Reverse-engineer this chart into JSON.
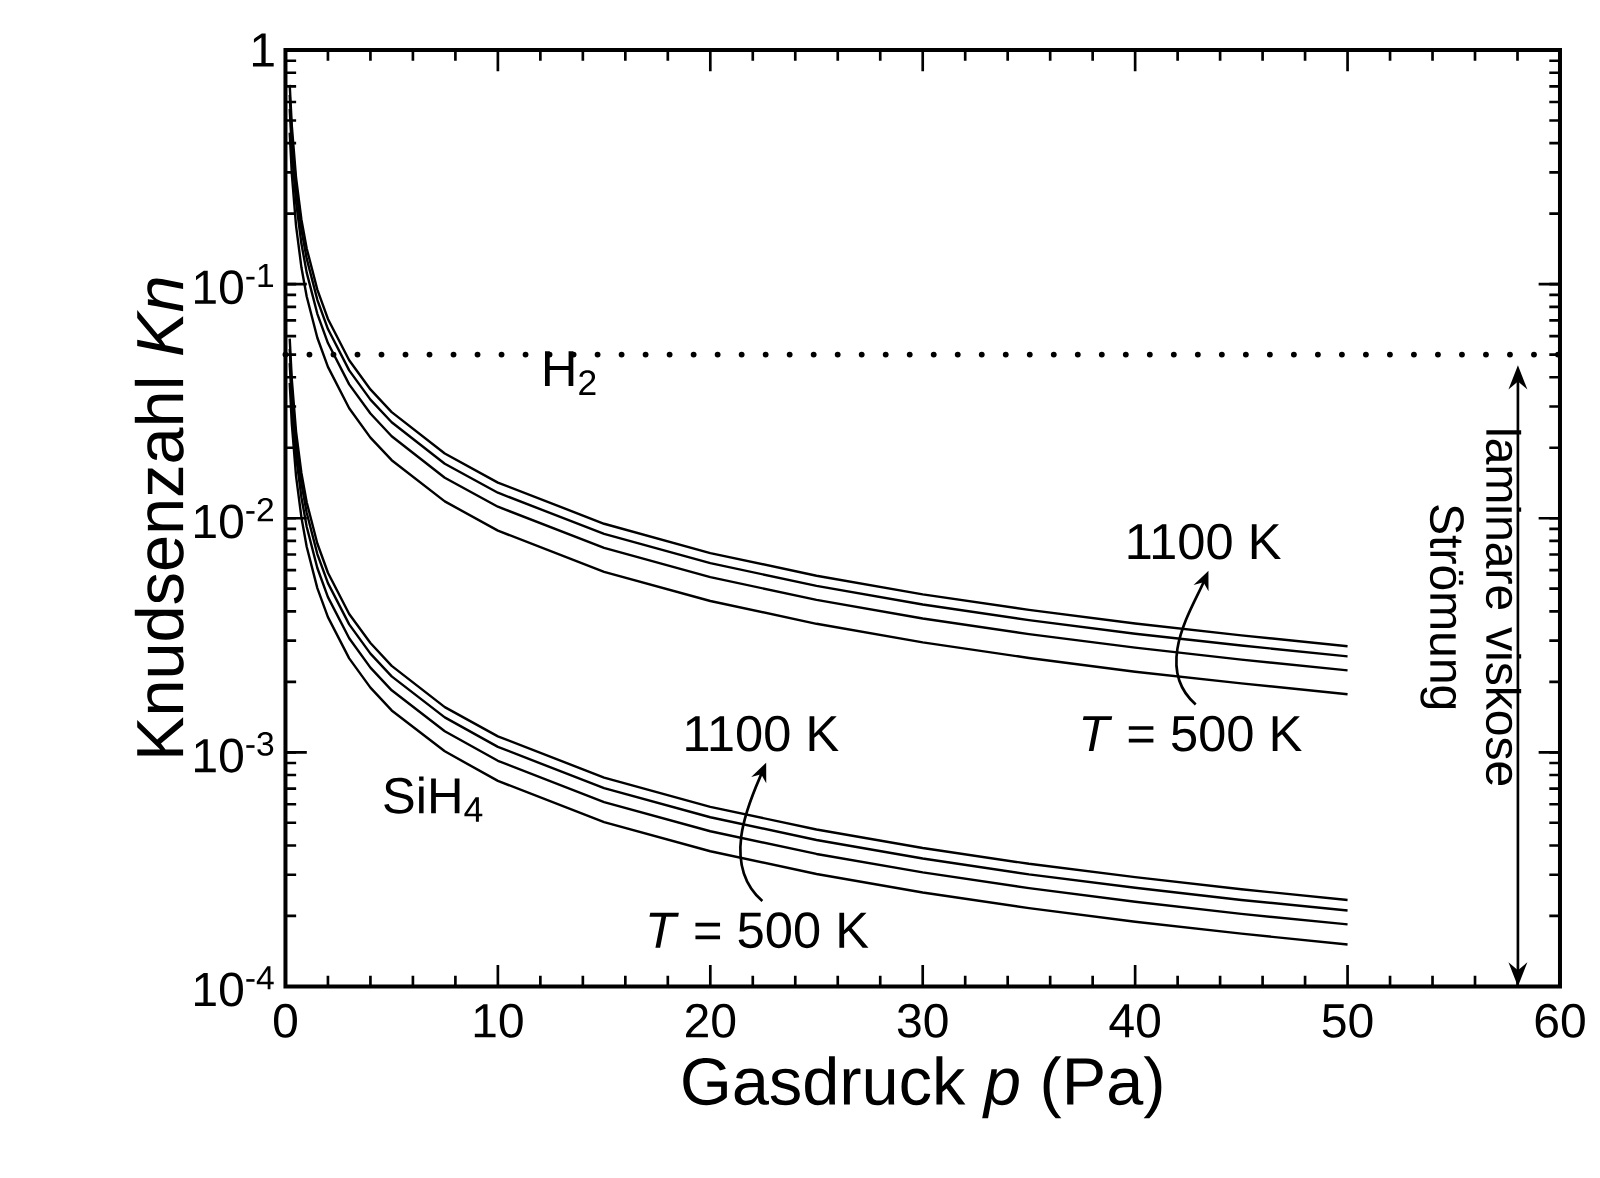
{
  "chart_data": {
    "type": "line",
    "xlabel": "Gasdruck *p* (Pa)",
    "ylabel": "Knudsenzahl *Kn*",
    "log": "y",
    "xlim": [
      0,
      60
    ],
    "ylim": [
      0.0001,
      1
    ],
    "xticks": [
      0,
      10,
      20,
      30,
      40,
      50,
      60
    ],
    "yticks": [
      {
        "value": 0.0001,
        "label": "10$^{-4}$"
      },
      {
        "value": 0.001,
        "label": "10$^{-3}$"
      },
      {
        "value": 0.01,
        "label": "10$^{-2}$"
      },
      {
        "value": 0.1,
        "label": "10$^{-1}$"
      },
      1
    ],
    "x": [
      0.2,
      0.3,
      0.5,
      0.75,
      1,
      1.5,
      2,
      3,
      4,
      5,
      7.5,
      10,
      15,
      20,
      25,
      30,
      35,
      40,
      45,
      50
    ],
    "series": [
      {
        "color": "#000000",
        "values": [
          0.71,
          0.473,
          0.284,
          0.189,
          0.142,
          0.0947,
          0.071,
          0.0473,
          0.0355,
          0.0284,
          0.0189,
          0.0142,
          0.00947,
          0.0071,
          0.00568,
          0.00473,
          0.00406,
          0.00355,
          0.00316,
          0.00284
        ]
      },
      {
        "color": "#000000",
        "values": [
          0.643,
          0.428,
          0.257,
          0.171,
          0.1285,
          0.0857,
          0.0643,
          0.0428,
          0.0321,
          0.0257,
          0.0171,
          0.01285,
          0.00857,
          0.00643,
          0.00514,
          0.00428,
          0.00367,
          0.00321,
          0.00286,
          0.00257
        ]
      },
      {
        "color": "#000000",
        "values": [
          0.56,
          0.373,
          0.224,
          0.149,
          0.112,
          0.0747,
          0.056,
          0.0373,
          0.028,
          0.0224,
          0.0149,
          0.0112,
          0.00747,
          0.0056,
          0.00448,
          0.00373,
          0.0032,
          0.0028,
          0.00249,
          0.00224
        ]
      },
      {
        "color": "#000000",
        "values": [
          0.443,
          0.295,
          0.177,
          0.118,
          0.0885,
          0.059,
          0.0443,
          0.0295,
          0.0221,
          0.0177,
          0.0118,
          0.00885,
          0.0059,
          0.00443,
          0.00354,
          0.00295,
          0.00253,
          0.00221,
          0.00197,
          0.00177
        ]
      },
      {
        "color": "#000000",
        "values": [
          0.0585,
          0.039,
          0.0234,
          0.0156,
          0.0117,
          0.0078,
          0.00585,
          0.0039,
          0.00293,
          0.00234,
          0.00156,
          0.00117,
          0.00078,
          0.000585,
          0.000468,
          0.00039,
          0.000334,
          0.000293,
          0.00026,
          0.000234
        ]
      },
      {
        "color": "#000000",
        "values": [
          0.0528,
          0.0352,
          0.0211,
          0.0141,
          0.01055,
          0.00703,
          0.00528,
          0.00352,
          0.00264,
          0.00211,
          0.00141,
          0.001055,
          0.000703,
          0.000528,
          0.000422,
          0.000352,
          0.000301,
          0.000264,
          0.000234,
          0.000211
        ]
      },
      {
        "color": "#000000",
        "values": [
          0.046,
          0.0307,
          0.0184,
          0.0123,
          0.0092,
          0.00613,
          0.0046,
          0.00307,
          0.0023,
          0.00184,
          0.00123,
          0.00092,
          0.000613,
          0.00046,
          0.000368,
          0.000307,
          0.000263,
          0.00023,
          0.000204,
          0.000184
        ]
      },
      {
        "color": "#000000",
        "values": [
          0.0378,
          0.0252,
          0.0151,
          0.0101,
          0.00755,
          0.00503,
          0.00378,
          0.00252,
          0.00189,
          0.00151,
          0.00101,
          0.000755,
          0.000503,
          0.000378,
          0.000302,
          0.000252,
          0.000216,
          0.000189,
          0.000168,
          0.000151
        ]
      }
    ],
    "ref_lines": [
      {
        "axis": "y",
        "value": 0.05,
        "line_style": "dotted",
        "color": "#000000"
      }
    ],
    "annotations": [
      "H$_{2}$",
      "SiH$_{4}$",
      "1100 K",
      "*T* = 500 K",
      "1100 K",
      "*T* = 500 K",
      "laminare viskose Strömung"
    ]
  }
}
